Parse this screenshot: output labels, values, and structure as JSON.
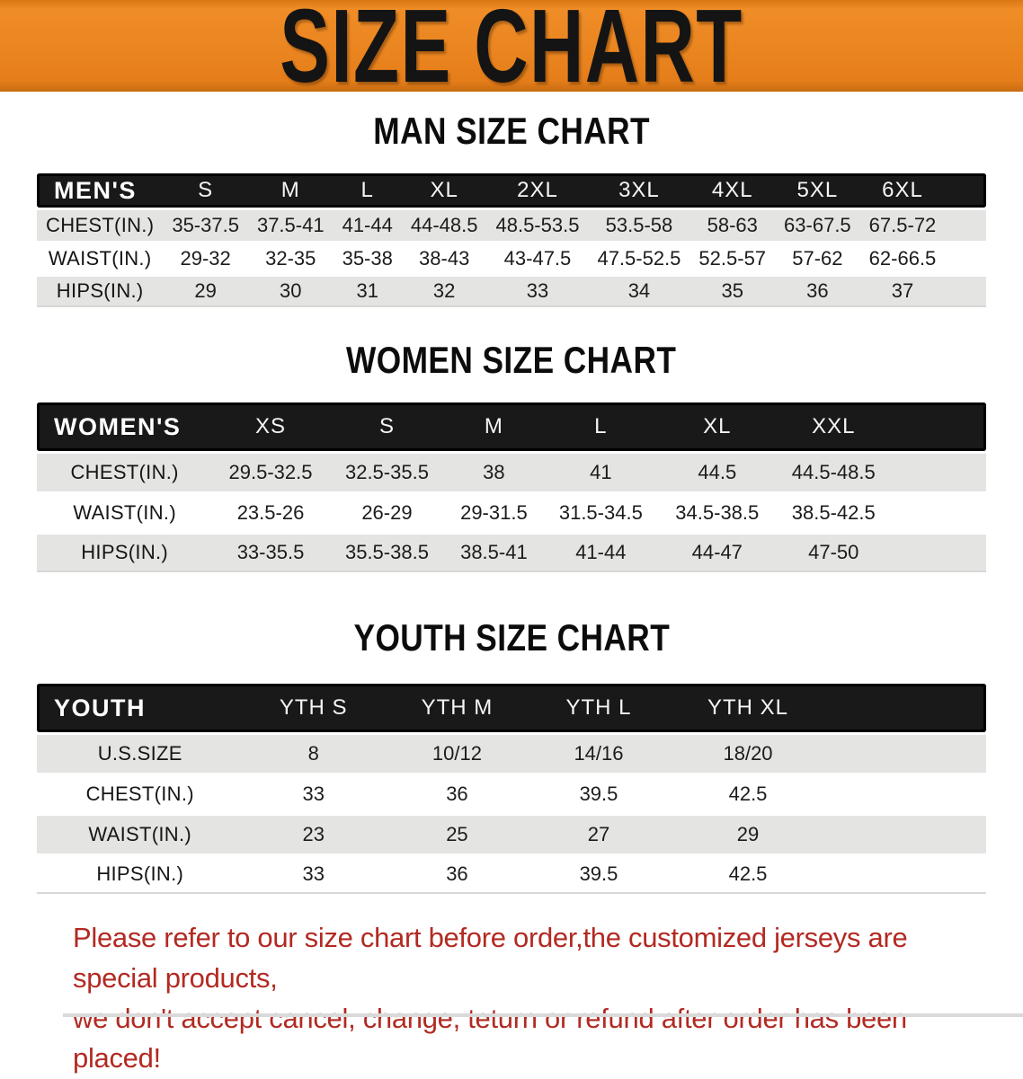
{
  "banner": {
    "title": "SIZE CHART"
  },
  "sections": [
    {
      "heading": "MAN SIZE CHART",
      "header_label": "MEN'S",
      "columns": [
        "S",
        "M",
        "L",
        "XL",
        "2XL",
        "3XL",
        "4XL",
        "5XL",
        "6XL"
      ],
      "rows": [
        {
          "label": "CHEST(IN.)",
          "values": [
            "35-37.5",
            "37.5-41",
            "41-44",
            "44-48.5",
            "48.5-53.5",
            "53.5-58",
            "58-63",
            "63-67.5",
            "67.5-72"
          ]
        },
        {
          "label": "WAIST(IN.)",
          "values": [
            "29-32",
            "32-35",
            "35-38",
            "38-43",
            "43-47.5",
            "47.5-52.5",
            "52.5-57",
            "57-62",
            "62-66.5"
          ]
        },
        {
          "label": "HIPS(IN.)",
          "values": [
            "29",
            "30",
            "31",
            "32",
            "33",
            "34",
            "35",
            "36",
            "37"
          ]
        }
      ]
    },
    {
      "heading": "WOMEN SIZE CHART",
      "header_label": "WOMEN'S",
      "columns": [
        "XS",
        "S",
        "M",
        "L",
        "XL",
        "XXL"
      ],
      "rows": [
        {
          "label": "CHEST(IN.)",
          "values": [
            "29.5-32.5",
            "32.5-35.5",
            "38",
            "41",
            "44.5",
            "44.5-48.5"
          ]
        },
        {
          "label": "WAIST(IN.)",
          "values": [
            "23.5-26",
            "26-29",
            "29-31.5",
            "31.5-34.5",
            "34.5-38.5",
            "38.5-42.5"
          ]
        },
        {
          "label": "HIPS(IN.)",
          "values": [
            "33-35.5",
            "35.5-38.5",
            "38.5-41",
            "41-44",
            "44-47",
            "47-50"
          ]
        }
      ]
    },
    {
      "heading": "YOUTH SIZE CHART",
      "header_label": "YOUTH",
      "columns": [
        "YTH S",
        "YTH M",
        "YTH L",
        "YTH XL"
      ],
      "rows": [
        {
          "label": "U.S.SIZE",
          "values": [
            "8",
            "10/12",
            "14/16",
            "18/20"
          ]
        },
        {
          "label": "CHEST(IN.)",
          "values": [
            "33",
            "36",
            "39.5",
            "42.5"
          ]
        },
        {
          "label": "WAIST(IN.)",
          "values": [
            "23",
            "25",
            "27",
            "29"
          ]
        },
        {
          "label": "HIPS(IN.)",
          "values": [
            "33",
            "36",
            "39.5",
            "42.5"
          ]
        }
      ]
    }
  ],
  "disclaimer": {
    "line1": "Please refer to our size chart before order,the customized jerseys are special products,",
    "line2": "we don't accept cancel, change, teturn or refund after order has been placed!"
  },
  "colors": {
    "banner_bg": "#e9831f",
    "banner_text": "#141414",
    "header_bar_bg": "#191919",
    "header_bar_text": "#f5f5f5",
    "row_alt_bg": "#e4e4e2",
    "body_text": "#1c1c1c",
    "disclaimer_red": "#b22a22"
  }
}
